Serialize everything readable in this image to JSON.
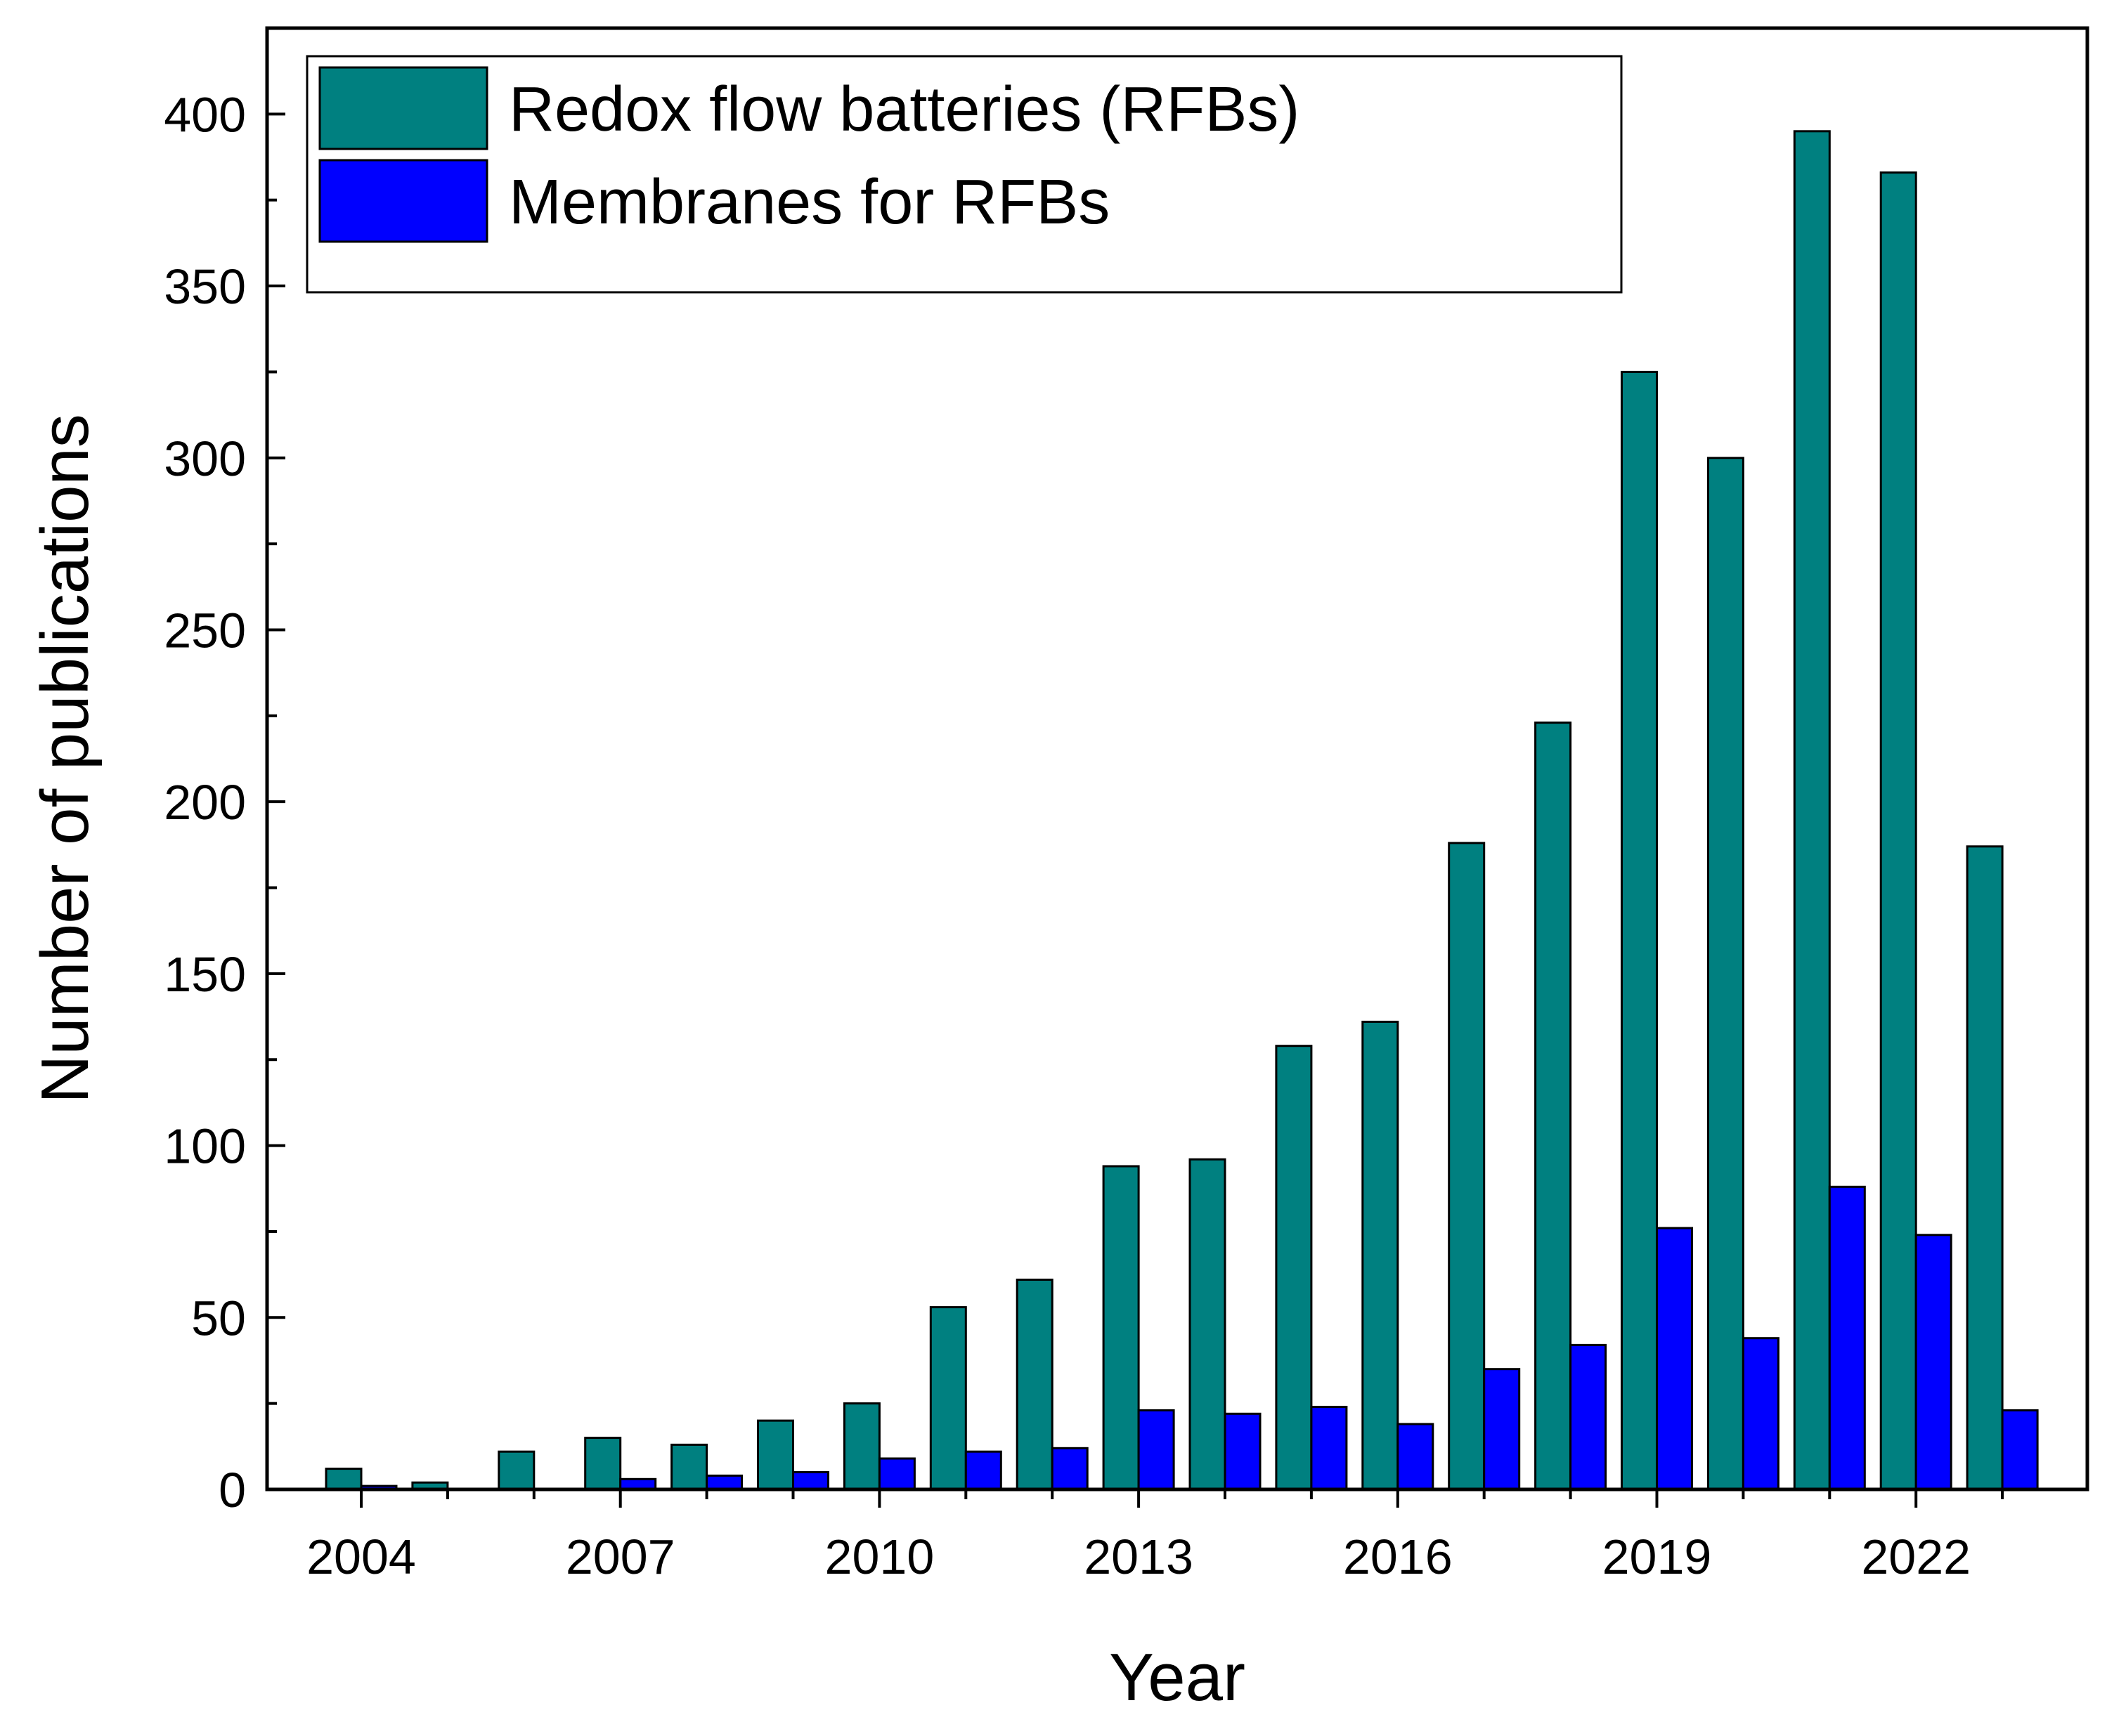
{
  "chart_data": {
    "type": "bar",
    "title": "",
    "xlabel": "Year",
    "ylabel": "Number of publications",
    "categories": [
      "2004",
      "2005",
      "2006",
      "2007",
      "2008",
      "2009",
      "2010",
      "2011",
      "2012",
      "2013",
      "2014",
      "2015",
      "2016",
      "2017",
      "2018",
      "2019",
      "2020",
      "2021",
      "2022",
      "2023"
    ],
    "x_tick_labels": [
      "2004",
      "2007",
      "2010",
      "2013",
      "2016",
      "2019",
      "2022"
    ],
    "y_tick_labels": [
      "0",
      "50",
      "100",
      "150",
      "200",
      "250",
      "300",
      "350",
      "400"
    ],
    "ylim": [
      0,
      425
    ],
    "grid": false,
    "legend_position": "top-left",
    "series": [
      {
        "name": "Redox flow batteries (RFBs)",
        "color": "#008080",
        "values": [
          6,
          2,
          11,
          15,
          13,
          20,
          25,
          53,
          61,
          94,
          96,
          129,
          136,
          188,
          223,
          325,
          300,
          395,
          383,
          187
        ]
      },
      {
        "name": "Membranes for RFBs",
        "color": "#0000ff",
        "values": [
          1,
          0,
          0,
          3,
          4,
          5,
          9,
          11,
          12,
          23,
          22,
          24,
          19,
          35,
          42,
          76,
          44,
          88,
          74,
          23
        ]
      }
    ]
  }
}
